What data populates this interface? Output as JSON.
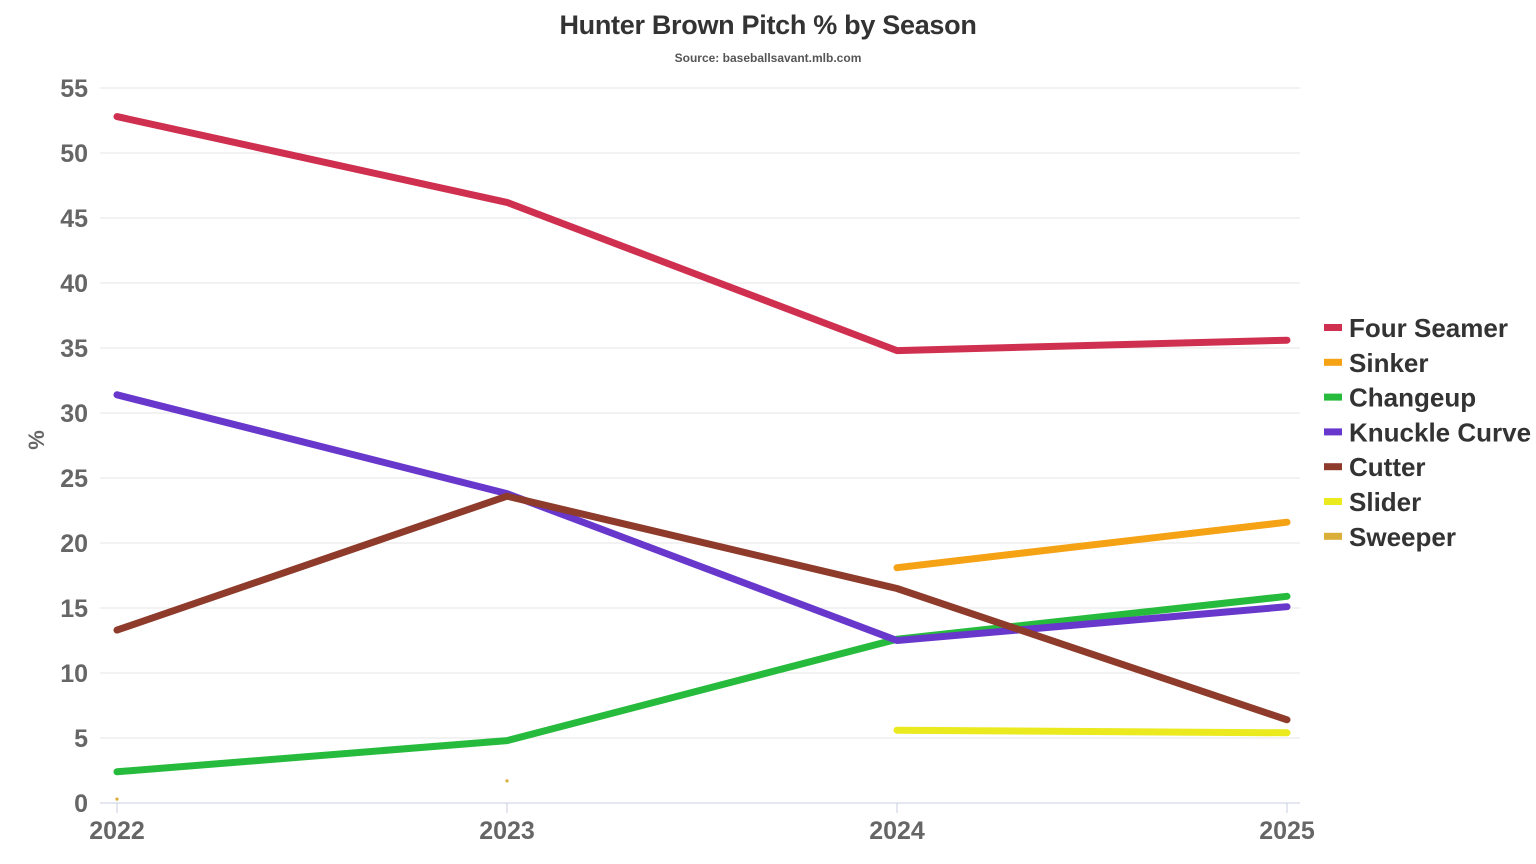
{
  "chart_data": {
    "type": "line",
    "title": "Hunter Brown Pitch % by Season",
    "subtitle": "Source: baseballsavant.mlb.com",
    "xlabel": "",
    "ylabel": "%",
    "x": [
      "2022",
      "2023",
      "2024",
      "2025"
    ],
    "ylim": [
      0,
      55
    ],
    "yticks": [
      0,
      5,
      10,
      15,
      20,
      25,
      30,
      35,
      40,
      45,
      50,
      55
    ],
    "grid": true,
    "legend_position": "right",
    "series": [
      {
        "name": "Four Seamer",
        "color": "#d0304f",
        "values": [
          52.8,
          46.2,
          34.8,
          35.6
        ]
      },
      {
        "name": "Sinker",
        "color": "#f5a214",
        "values": [
          null,
          null,
          18.1,
          21.6
        ]
      },
      {
        "name": "Changeup",
        "color": "#26bb3d",
        "values": [
          2.4,
          4.8,
          12.6,
          15.9
        ]
      },
      {
        "name": "Knuckle Curve",
        "color": "#6838cc",
        "values": [
          31.4,
          23.8,
          12.5,
          15.1
        ]
      },
      {
        "name": "Cutter",
        "color": "#8e3b2c",
        "values": [
          13.3,
          23.6,
          16.5,
          6.4
        ]
      },
      {
        "name": "Slider",
        "color": "#eaea1f",
        "values": [
          null,
          null,
          5.6,
          5.4
        ]
      },
      {
        "name": "Sweeper",
        "color": "#d9ae39",
        "values": [
          0.3,
          1.7,
          null,
          null
        ]
      }
    ]
  }
}
